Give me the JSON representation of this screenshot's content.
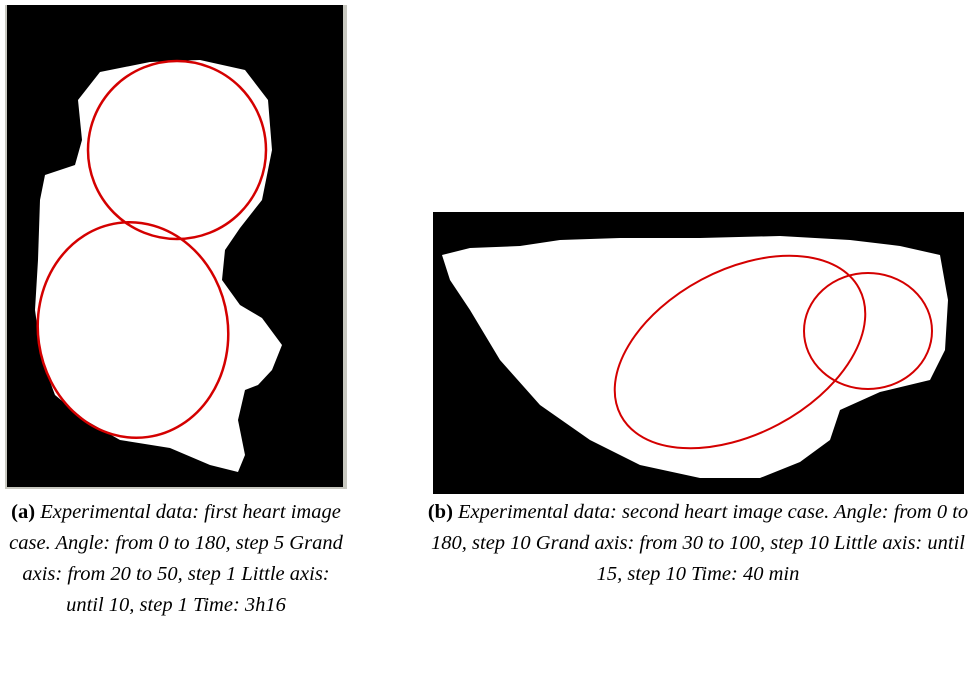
{
  "figures": [
    {
      "label": "(a)",
      "caption": "Experimental data: first heart image case. Angle: from 0 to 180, step 5 Grand axis: from 20 to 50, step 1 Little axis: until 10, step 1 Time: 3h16"
    },
    {
      "label": "(b)",
      "caption": "Experimental data: second heart image case. Angle: from 0 to 180, step 10 Grand axis: from 30 to 100, step 10 Little axis: until 15, step 10 Time: 40 min"
    }
  ]
}
